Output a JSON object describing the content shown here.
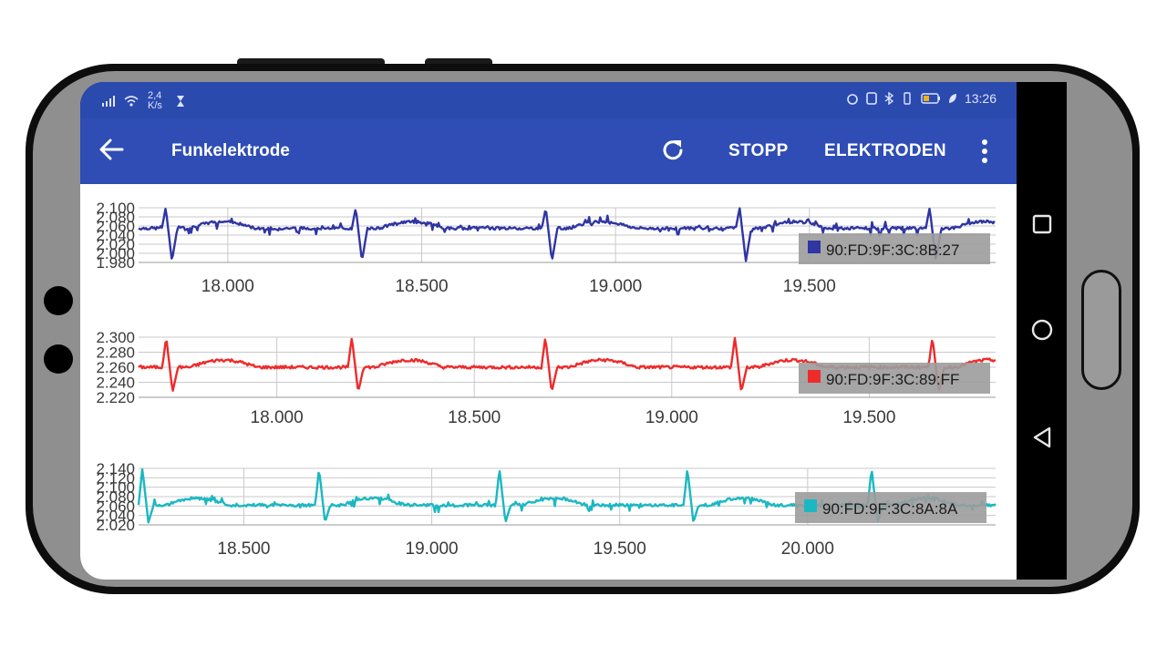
{
  "status_bar": {
    "net_speed": "2,4 K/s",
    "time": "13:26"
  },
  "app_bar": {
    "title": "Funkelektrode",
    "actions": [
      "STOPP",
      "ELEKTRODEN"
    ],
    "icons": [
      "back-arrow-icon",
      "refresh-icon",
      "overflow-menu-icon"
    ]
  },
  "nav_bar": {
    "icons": [
      "recent-apps-icon",
      "home-icon",
      "back-icon"
    ]
  },
  "colors": {
    "app_bar": "#2f4db4",
    "status_bar": "#2b4aae",
    "series_1": "#2f35a3",
    "series_2": "#ee2b2b",
    "series_3": "#1bb8c2"
  },
  "chart_data": [
    {
      "type": "line",
      "legend": "90:FD:9F:3C:8B:27",
      "color": "#2f35a3",
      "y_ticks": [
        "2.100",
        "2.080",
        "2.060",
        "2.040",
        "2.020",
        "2.000",
        "1.980"
      ],
      "x_ticks": [
        {
          "label": "18.000",
          "value": 18000
        },
        {
          "label": "18.500",
          "value": 18500
        },
        {
          "label": "19.000",
          "value": 19000
        },
        {
          "label": "19.500",
          "value": 19500
        }
      ],
      "xlim": [
        17770,
        19980
      ],
      "ylim": [
        1980,
        2100
      ],
      "baseline": 2055,
      "beats": [
        17840,
        18330,
        18820,
        19320,
        19810
      ],
      "spike_up": 2100,
      "spike_down": 1983,
      "grid": true,
      "legend_position": "bottom-right"
    },
    {
      "type": "line",
      "legend": "90:FD:9F:3C:89:FF",
      "color": "#ee2b2b",
      "y_ticks": [
        "2.300",
        "2.280",
        "2.260",
        "2.240",
        "2.220"
      ],
      "x_ticks": [
        {
          "label": "18.000",
          "value": 18000
        },
        {
          "label": "18.500",
          "value": 18500
        },
        {
          "label": "19.000",
          "value": 19000
        },
        {
          "label": "19.500",
          "value": 19500
        }
      ],
      "xlim": [
        17650,
        19820
      ],
      "ylim": [
        2220,
        2300
      ],
      "baseline": 2260,
      "beats": [
        17720,
        18190,
        18680,
        19160,
        19660
      ],
      "spike_up": 2300,
      "spike_down": 2227,
      "grid": true,
      "legend_position": "bottom-right"
    },
    {
      "type": "line",
      "legend": "90:FD:9F:3C:8A:8A",
      "color": "#1bb8c2",
      "y_ticks": [
        "2.140",
        "2.120",
        "2.100",
        "2.080",
        "2.060",
        "2.040",
        "2.020"
      ],
      "x_ticks": [
        {
          "label": "18.500",
          "value": 18500
        },
        {
          "label": "19.000",
          "value": 19000
        },
        {
          "label": "19.500",
          "value": 19500
        },
        {
          "label": "20.000",
          "value": 20000
        }
      ],
      "xlim": [
        18220,
        20500
      ],
      "ylim": [
        2020,
        2140
      ],
      "baseline": 2062,
      "beats": [
        18230,
        18700,
        19180,
        19680,
        20170
      ],
      "spike_up": 2140,
      "spike_down": 2025,
      "grid": true,
      "legend_position": "bottom-right"
    }
  ]
}
